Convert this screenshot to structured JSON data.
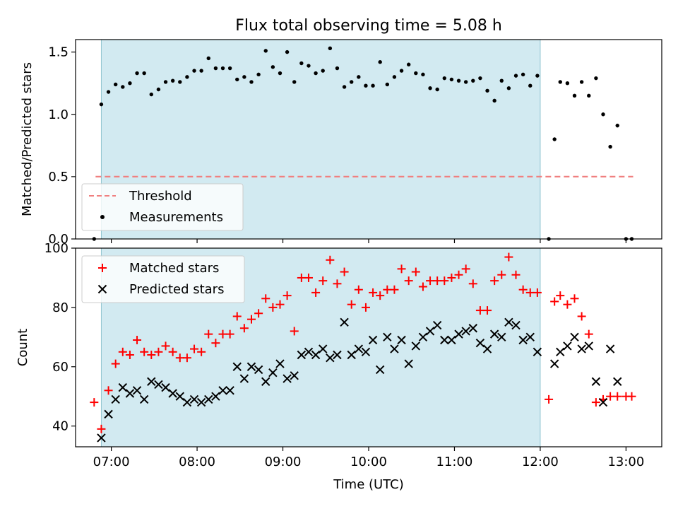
{
  "chart_data": [
    {
      "type": "scatter",
      "title": "Flux total observing time = 5.08 h",
      "xlabel": "",
      "ylabel": "Matched/Predicted stars",
      "ylim": [
        0,
        1.6
      ],
      "yticks": [
        0.0,
        0.5,
        1.0,
        1.5
      ],
      "ytick_labels": [
        "0.0",
        "0.5",
        "1.0",
        "1.5"
      ],
      "xticks": [
        "07:00",
        "08:00",
        "09:00",
        "10:00",
        "11:00",
        "12:00",
        "13:00"
      ],
      "xlim": [
        "06:35",
        "13:25"
      ],
      "shaded_interval": [
        "06:53",
        "12:00"
      ],
      "shade_color": "#add8e6",
      "legend_position": "lower-left",
      "series": [
        {
          "name": "Threshold",
          "kind": "dashed-line",
          "color": "#f08080",
          "x": [
            "06:49",
            "13:05"
          ],
          "y": [
            0.5,
            0.5
          ]
        },
        {
          "name": "Measurements",
          "kind": "points",
          "color": "#000000",
          "x": [
            "06:48",
            "06:53",
            "06:58",
            "07:03",
            "07:08",
            "07:13",
            "07:18",
            "07:23",
            "07:28",
            "07:33",
            "07:38",
            "07:43",
            "07:48",
            "07:53",
            "07:58",
            "08:03",
            "08:08",
            "08:13",
            "08:18",
            "08:23",
            "08:28",
            "08:33",
            "08:38",
            "08:43",
            "08:48",
            "08:53",
            "08:58",
            "09:03",
            "09:08",
            "09:13",
            "09:18",
            "09:23",
            "09:28",
            "09:33",
            "09:38",
            "09:43",
            "09:48",
            "09:53",
            "09:58",
            "10:03",
            "10:08",
            "10:13",
            "10:18",
            "10:23",
            "10:28",
            "10:33",
            "10:38",
            "10:43",
            "10:48",
            "10:53",
            "10:58",
            "11:03",
            "11:08",
            "11:13",
            "11:18",
            "11:23",
            "11:28",
            "11:33",
            "11:38",
            "11:43",
            "11:48",
            "11:53",
            "11:58",
            "12:06",
            "12:10",
            "12:14",
            "12:19",
            "12:24",
            "12:29",
            "12:34",
            "12:39",
            "12:44",
            "12:49",
            "12:54",
            "13:00",
            "13:04"
          ],
          "y": [
            0.0,
            1.08,
            1.18,
            1.24,
            1.22,
            1.25,
            1.33,
            1.33,
            1.16,
            1.2,
            1.26,
            1.27,
            1.26,
            1.3,
            1.35,
            1.35,
            1.45,
            1.37,
            1.37,
            1.37,
            1.28,
            1.3,
            1.26,
            1.32,
            1.51,
            1.38,
            1.33,
            1.5,
            1.26,
            1.41,
            1.39,
            1.33,
            1.35,
            1.53,
            1.37,
            1.22,
            1.26,
            1.3,
            1.23,
            1.23,
            1.42,
            1.24,
            1.3,
            1.35,
            1.4,
            1.33,
            1.32,
            1.21,
            1.2,
            1.29,
            1.28,
            1.27,
            1.26,
            1.27,
            1.29,
            1.19,
            1.11,
            1.27,
            1.21,
            1.31,
            1.32,
            1.23,
            1.31,
            0.0,
            0.8,
            1.26,
            1.25,
            1.15,
            1.26,
            1.15,
            1.29,
            1.0,
            0.74,
            0.91,
            0.0,
            0.0
          ]
        }
      ]
    },
    {
      "type": "scatter",
      "title": "",
      "xlabel": "Time (UTC)",
      "ylabel": "Count",
      "ylim": [
        33,
        100
      ],
      "yticks": [
        40,
        60,
        80,
        100
      ],
      "ytick_labels": [
        "40",
        "60",
        "80",
        "100"
      ],
      "xticks": [
        "07:00",
        "08:00",
        "09:00",
        "10:00",
        "11:00",
        "12:00",
        "13:00"
      ],
      "xlim": [
        "06:35",
        "13:25"
      ],
      "shaded_interval": [
        "06:53",
        "12:00"
      ],
      "shade_color": "#add8e6",
      "legend_position": "upper-left",
      "series": [
        {
          "name": "Matched stars",
          "marker": "plus",
          "color": "#ff0000",
          "x": [
            "06:48",
            "06:53",
            "06:58",
            "07:03",
            "07:08",
            "07:13",
            "07:18",
            "07:23",
            "07:28",
            "07:33",
            "07:38",
            "07:43",
            "07:48",
            "07:53",
            "07:58",
            "08:03",
            "08:08",
            "08:13",
            "08:18",
            "08:23",
            "08:28",
            "08:33",
            "08:38",
            "08:43",
            "08:48",
            "08:53",
            "08:58",
            "09:03",
            "09:08",
            "09:13",
            "09:18",
            "09:23",
            "09:28",
            "09:33",
            "09:38",
            "09:43",
            "09:48",
            "09:53",
            "09:58",
            "10:03",
            "10:08",
            "10:13",
            "10:18",
            "10:23",
            "10:28",
            "10:33",
            "10:38",
            "10:43",
            "10:48",
            "10:53",
            "10:58",
            "11:03",
            "11:08",
            "11:13",
            "11:18",
            "11:23",
            "11:28",
            "11:33",
            "11:38",
            "11:43",
            "11:48",
            "11:53",
            "11:58",
            "12:06",
            "12:10",
            "12:14",
            "12:19",
            "12:24",
            "12:29",
            "12:34",
            "12:39",
            "12:44",
            "12:49",
            "12:54",
            "13:00",
            "13:04"
          ],
          "y": [
            48,
            39,
            52,
            61,
            65,
            64,
            69,
            65,
            64,
            65,
            67,
            65,
            63,
            63,
            66,
            65,
            71,
            68,
            71,
            71,
            77,
            73,
            76,
            78,
            83,
            80,
            81,
            84,
            72,
            90,
            90,
            85,
            89,
            96,
            88,
            92,
            81,
            86,
            80,
            85,
            84,
            86,
            86,
            93,
            89,
            92,
            87,
            89,
            89,
            89,
            90,
            91,
            93,
            88,
            79,
            79,
            89,
            91,
            97,
            91,
            86,
            85,
            85,
            49,
            82,
            84,
            81,
            83,
            77,
            71,
            48,
            49,
            50,
            50,
            50,
            50
          ]
        },
        {
          "name": "Predicted stars",
          "marker": "x",
          "color": "#000000",
          "x": [
            "06:53",
            "06:58",
            "07:03",
            "07:08",
            "07:13",
            "07:18",
            "07:23",
            "07:28",
            "07:33",
            "07:38",
            "07:43",
            "07:48",
            "07:53",
            "07:58",
            "08:03",
            "08:08",
            "08:13",
            "08:18",
            "08:23",
            "08:28",
            "08:33",
            "08:38",
            "08:43",
            "08:48",
            "08:53",
            "08:58",
            "09:03",
            "09:08",
            "09:13",
            "09:18",
            "09:23",
            "09:28",
            "09:33",
            "09:38",
            "09:43",
            "09:48",
            "09:53",
            "09:58",
            "10:03",
            "10:08",
            "10:13",
            "10:18",
            "10:23",
            "10:28",
            "10:33",
            "10:38",
            "10:43",
            "10:48",
            "10:53",
            "10:58",
            "11:03",
            "11:08",
            "11:13",
            "11:18",
            "11:23",
            "11:28",
            "11:33",
            "11:38",
            "11:43",
            "11:48",
            "11:53",
            "11:58",
            "12:10",
            "12:14",
            "12:19",
            "12:24",
            "12:29",
            "12:34",
            "12:39",
            "12:44",
            "12:49",
            "12:54"
          ],
          "y": [
            36,
            44,
            49,
            53,
            51,
            52,
            49,
            55,
            54,
            53,
            51,
            50,
            48,
            49,
            48,
            49,
            50,
            52,
            52,
            60,
            56,
            60,
            59,
            55,
            58,
            61,
            56,
            57,
            64,
            65,
            64,
            66,
            63,
            64,
            75,
            64,
            66,
            65,
            69,
            59,
            70,
            66,
            69,
            61,
            67,
            70,
            72,
            74,
            69,
            69,
            71,
            72,
            73,
            68,
            66,
            71,
            70,
            75,
            74,
            69,
            70,
            65,
            61,
            65,
            67,
            70,
            66,
            67,
            55,
            48,
            66,
            55
          ]
        }
      ]
    }
  ]
}
